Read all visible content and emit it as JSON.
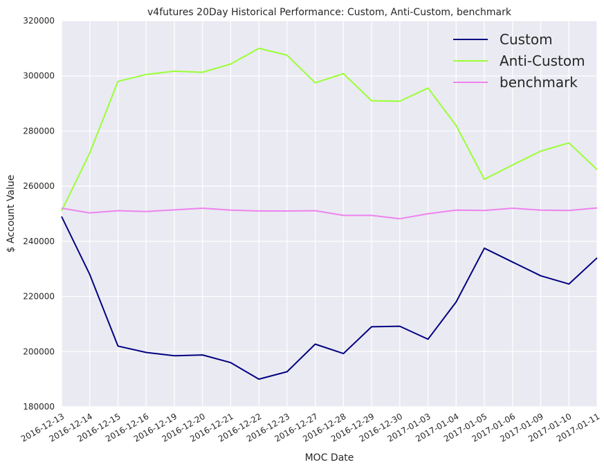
{
  "chart_data": {
    "type": "line",
    "title": "v4futures 20Day Historical Performance: Custom, Anti-Custom, benchmark",
    "xlabel": "MOC Date",
    "ylabel": "$ Account Value",
    "categories": [
      "2016-12-13",
      "2016-12-14",
      "2016-12-15",
      "2016-12-16",
      "2016-12-19",
      "2016-12-20",
      "2016-12-21",
      "2016-12-22",
      "2016-12-23",
      "2016-12-27",
      "2016-12-28",
      "2016-12-29",
      "2016-12-30",
      "2017-01-03",
      "2017-01-04",
      "2017-01-05",
      "2017-01-06",
      "2017-01-09",
      "2017-01-10",
      "2017-01-11"
    ],
    "ylim": [
      180000,
      320000
    ],
    "yticks": [
      180000,
      200000,
      220000,
      240000,
      260000,
      280000,
      300000,
      320000
    ],
    "grid": true,
    "legend_position": "top-right",
    "series": [
      {
        "name": "Custom",
        "color": "#000080",
        "values": [
          249000,
          228000,
          202000,
          199700,
          198500,
          198800,
          196000,
          190000,
          192700,
          202700,
          199300,
          209000,
          209200,
          204500,
          218000,
          237500,
          232500,
          227500,
          224500,
          234000
        ]
      },
      {
        "name": "Anti-Custom",
        "color": "#99ff33",
        "values": [
          251000,
          272000,
          298000,
          300500,
          301700,
          301300,
          304300,
          310000,
          307500,
          297500,
          300800,
          291000,
          290800,
          295600,
          282000,
          262500,
          267700,
          272700,
          275700,
          266000
        ]
      },
      {
        "name": "benchmark",
        "color": "#ee82ee",
        "values": [
          252000,
          250300,
          251100,
          250800,
          251400,
          252000,
          251300,
          251000,
          251000,
          251100,
          249400,
          249400,
          248200,
          250000,
          251300,
          251200,
          252000,
          251300,
          251200,
          252100
        ]
      }
    ]
  }
}
